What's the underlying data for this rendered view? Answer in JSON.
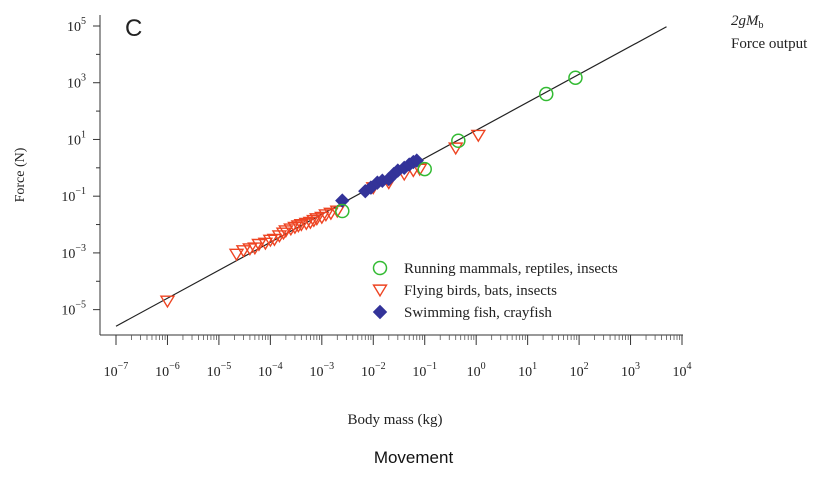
{
  "caption": "Movement",
  "chart_data": {
    "type": "scatter",
    "panel_label": "C",
    "xlabel": "Body mass (kg)",
    "ylabel": "Force (N)",
    "x_scale": "log",
    "y_scale": "log",
    "xlim": [
      1e-07,
      10000.0
    ],
    "ylim": [
      1e-06,
      100000.0
    ],
    "x_ticks": [
      {
        "value": 1e-07,
        "base": "10",
        "exp": "−7"
      },
      {
        "value": 1e-06,
        "base": "10",
        "exp": "−6"
      },
      {
        "value": 1e-05,
        "base": "10",
        "exp": "−5"
      },
      {
        "value": 0.0001,
        "base": "10",
        "exp": "−4"
      },
      {
        "value": 0.001,
        "base": "10",
        "exp": "−3"
      },
      {
        "value": 0.01,
        "base": "10",
        "exp": "−2"
      },
      {
        "value": 0.1,
        "base": "10",
        "exp": "−1"
      },
      {
        "value": 1,
        "base": "10",
        "exp": "0"
      },
      {
        "value": 10,
        "base": "10",
        "exp": "1"
      },
      {
        "value": 100,
        "base": "10",
        "exp": "2"
      },
      {
        "value": 1000,
        "base": "10",
        "exp": "3"
      },
      {
        "value": 10000,
        "base": "10",
        "exp": "4"
      }
    ],
    "y_ticks": [
      {
        "value": 1e-05,
        "base": "10",
        "exp": "−5"
      },
      {
        "value": 0.001,
        "base": "10",
        "exp": "−3"
      },
      {
        "value": 0.1,
        "base": "10",
        "exp": "−1"
      },
      {
        "value": 10,
        "base": "10",
        "exp": "1"
      },
      {
        "value": 1000,
        "base": "10",
        "exp": "3"
      },
      {
        "value": 100000,
        "base": "10",
        "exp": "5"
      }
    ],
    "fit_line": {
      "label_prefix": "2g",
      "label_var": "M",
      "label_sub": "b",
      "label_line2": "Force output",
      "x": [
        1e-07,
        5000.0
      ],
      "y": [
        2.6e-06,
        94000.0
      ]
    },
    "legend_position": "lower-right",
    "series": [
      {
        "name": "Running mammals, reptiles, insects",
        "marker": "circle",
        "color": "#33bb33",
        "x": [
          0.0025,
          0.1,
          0.45,
          23,
          85
        ],
        "y": [
          0.03,
          0.9,
          9,
          400,
          1500
        ]
      },
      {
        "name": "Flying birds, bats, insects",
        "marker": "triangle-down",
        "color": "#ee4422",
        "x": [
          1e-06,
          2.2e-05,
          3e-05,
          4e-05,
          5e-05,
          6e-05,
          8e-05,
          0.0001,
          0.00012,
          0.00015,
          0.00018,
          0.0002,
          0.00025,
          0.0003,
          0.00035,
          0.0004,
          0.0005,
          0.0006,
          0.0007,
          0.0008,
          0.001,
          0.0012,
          0.0015,
          0.002,
          0.01,
          0.02,
          0.04,
          0.06,
          0.08,
          0.4,
          1.1
        ],
        "y": [
          2e-05,
          0.0009,
          0.0012,
          0.0014,
          0.0015,
          0.002,
          0.0022,
          0.0028,
          0.003,
          0.004,
          0.005,
          0.006,
          0.007,
          0.008,
          0.009,
          0.01,
          0.011,
          0.012,
          0.014,
          0.016,
          0.018,
          0.022,
          0.025,
          0.03,
          0.2,
          0.3,
          0.6,
          0.8,
          0.9,
          5,
          14
        ]
      },
      {
        "name": "Swimming fish, crayfish",
        "marker": "diamond",
        "color": "#333399",
        "x": [
          0.0025,
          0.007,
          0.009,
          0.012,
          0.015,
          0.02,
          0.025,
          0.03,
          0.04,
          0.05,
          0.06,
          0.07
        ],
        "y": [
          0.07,
          0.15,
          0.2,
          0.3,
          0.35,
          0.4,
          0.6,
          0.8,
          1.0,
          1.3,
          1.6,
          1.8
        ]
      }
    ]
  }
}
